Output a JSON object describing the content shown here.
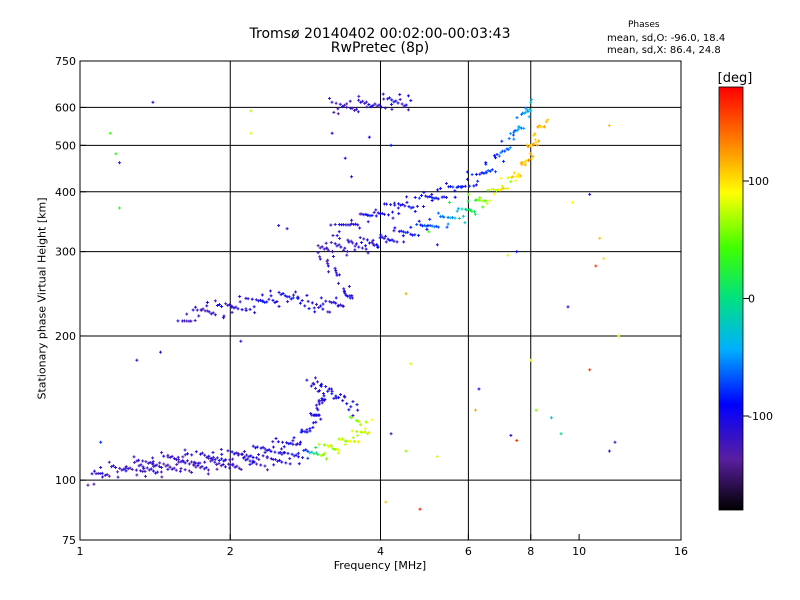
{
  "chart_data": {
    "type": "scatter",
    "title": "Tromsø 20140402 00:02:00-00:03:43",
    "subtitle": "RwPretec (8p)",
    "phases": {
      "heading": "Phases",
      "o_line": "mean, sd,O: -96.0, 18.4",
      "x_line": "mean, sd,X:  86.4, 24.8"
    },
    "xlabel": "Frequency [MHz]",
    "ylabel": "Stationary phase Virtual Height [km]",
    "x_scale": "log",
    "y_scale": "log",
    "xlim": [
      1,
      16
    ],
    "ylim": [
      75,
      750
    ],
    "x_ticks": [
      1,
      2,
      4,
      6,
      8,
      10,
      16
    ],
    "x_grid": [
      2,
      4,
      6,
      8
    ],
    "y_ticks": [
      75,
      100,
      200,
      300,
      400,
      500,
      600,
      750
    ],
    "y_grid": [
      100,
      200,
      300,
      400,
      500,
      600
    ],
    "grid": true,
    "colorbar": {
      "label": "[deg]",
      "range": [
        -180,
        180
      ],
      "ticks": [
        100,
        0,
        -100
      ]
    },
    "series": [
      {
        "marker": "+",
        "trace_points": [
          [
            1.05,
            100,
            -110
          ],
          [
            1.12,
            104,
            -115
          ],
          [
            1.25,
            106,
            -120
          ],
          [
            1.35,
            108,
            -110
          ],
          [
            1.5,
            110,
            -115
          ],
          [
            1.7,
            111,
            -110
          ],
          [
            1.9,
            112,
            -105
          ],
          [
            2.1,
            113,
            -110
          ],
          [
            2.3,
            115,
            -100
          ],
          [
            2.5,
            117,
            -105
          ],
          [
            2.7,
            120,
            -100
          ],
          [
            2.85,
            126,
            -95
          ],
          [
            2.95,
            135,
            -100
          ],
          [
            3.0,
            140,
            -105
          ],
          [
            3.1,
            150,
            -100
          ],
          [
            2.9,
            160,
            -110
          ],
          [
            3.3,
            150,
            -95
          ],
          [
            3.6,
            140,
            -100
          ],
          [
            1.3,
            105,
            -115
          ],
          [
            1.6,
            107,
            -120
          ],
          [
            2.0,
            108,
            -115
          ],
          [
            2.4,
            110,
            -110
          ],
          [
            2.8,
            113,
            -100
          ],
          [
            3.05,
            115,
            70
          ],
          [
            3.2,
            117,
            75
          ],
          [
            3.4,
            120,
            80
          ],
          [
            3.6,
            124,
            85
          ],
          [
            3.8,
            128,
            90
          ],
          [
            3.5,
            135,
            60
          ],
          [
            1.6,
            215,
            -110
          ],
          [
            1.75,
            225,
            -115
          ],
          [
            1.95,
            228,
            -110
          ],
          [
            2.15,
            232,
            -105
          ],
          [
            2.4,
            240,
            -100
          ],
          [
            2.7,
            242,
            -95
          ],
          [
            2.9,
            232,
            -100
          ],
          [
            3.1,
            230,
            -105
          ],
          [
            3.3,
            235,
            -110
          ],
          [
            3.5,
            240,
            -100
          ],
          [
            3.0,
            305,
            -120
          ],
          [
            3.2,
            306,
            -115
          ],
          [
            3.4,
            307,
            -115
          ],
          [
            3.6,
            310,
            -110
          ],
          [
            3.8,
            312,
            -105
          ],
          [
            4.0,
            316,
            -100
          ],
          [
            4.3,
            322,
            -95
          ],
          [
            4.6,
            330,
            -85
          ],
          [
            5.0,
            340,
            -70
          ],
          [
            5.4,
            350,
            -50
          ],
          [
            5.8,
            360,
            -20
          ],
          [
            6.1,
            370,
            20
          ],
          [
            6.4,
            385,
            60
          ],
          [
            6.8,
            400,
            90
          ],
          [
            7.2,
            420,
            100
          ],
          [
            7.6,
            440,
            110
          ],
          [
            7.9,
            470,
            120
          ],
          [
            8.1,
            500,
            120
          ],
          [
            8.3,
            540,
            115
          ],
          [
            8.6,
            560,
            110
          ],
          [
            3.2,
            330,
            -110
          ],
          [
            3.5,
            345,
            -105
          ],
          [
            3.9,
            360,
            -100
          ],
          [
            4.3,
            372,
            -100
          ],
          [
            4.8,
            382,
            -95
          ],
          [
            5.3,
            395,
            -90
          ],
          [
            5.8,
            410,
            -85
          ],
          [
            6.3,
            430,
            -80
          ],
          [
            6.8,
            460,
            -70
          ],
          [
            7.2,
            500,
            -60
          ],
          [
            7.5,
            540,
            -50
          ],
          [
            7.8,
            580,
            -40
          ],
          [
            8.0,
            615,
            -30
          ],
          [
            3.2,
            600,
            -120
          ],
          [
            3.5,
            605,
            -115
          ],
          [
            3.9,
            610,
            -110
          ],
          [
            4.6,
            620,
            -100
          ]
        ]
      },
      {
        "marker": "+",
        "scatter_points": [
          [
            1.4,
            615,
            -110
          ],
          [
            1.2,
            460,
            -115
          ],
          [
            1.15,
            530,
            40
          ],
          [
            1.18,
            480,
            30
          ],
          [
            1.2,
            370,
            30
          ],
          [
            2.2,
            590,
            70
          ],
          [
            2.2,
            530,
            80
          ],
          [
            2.5,
            340,
            -115
          ],
          [
            2.6,
            335,
            -115
          ],
          [
            3.5,
            430,
            -110
          ],
          [
            3.4,
            470,
            -105
          ],
          [
            3.2,
            530,
            -100
          ],
          [
            3.8,
            520,
            -95
          ],
          [
            4.2,
            500,
            -90
          ],
          [
            4.5,
            245,
            120
          ],
          [
            4.6,
            175,
            80
          ],
          [
            4.5,
            115,
            60
          ],
          [
            4.2,
            125,
            -120
          ],
          [
            5.0,
            330,
            40
          ],
          [
            5.2,
            310,
            -110
          ],
          [
            5.5,
            380,
            20
          ],
          [
            6.0,
            395,
            60
          ],
          [
            6.5,
            460,
            -90
          ],
          [
            7.0,
            510,
            -80
          ],
          [
            7.3,
            420,
            60
          ],
          [
            6.3,
            155,
            -100
          ],
          [
            7.2,
            295,
            80
          ],
          [
            7.5,
            300,
            -90
          ],
          [
            6.2,
            140,
            120
          ],
          [
            8.0,
            178,
            90
          ],
          [
            8.2,
            140,
            60
          ],
          [
            8.8,
            135,
            -30
          ],
          [
            9.2,
            125,
            -5
          ],
          [
            9.5,
            230,
            -105
          ],
          [
            9.7,
            380,
            90
          ],
          [
            10.5,
            395,
            -110
          ],
          [
            11.0,
            320,
            110
          ],
          [
            11.2,
            290,
            100
          ],
          [
            10.8,
            280,
            160
          ],
          [
            11.5,
            550,
            110
          ],
          [
            12.0,
            200,
            70
          ],
          [
            10.5,
            170,
            160
          ],
          [
            11.8,
            120,
            -120
          ],
          [
            11.5,
            115,
            -120
          ],
          [
            4.8,
            87,
            170
          ],
          [
            4.1,
            90,
            110
          ],
          [
            5.2,
            112,
            80
          ],
          [
            7.3,
            124,
            -110
          ],
          [
            7.5,
            121,
            160
          ],
          [
            1.8,
            235,
            -90
          ],
          [
            2.1,
            195,
            -110
          ],
          [
            1.45,
            185,
            -115
          ],
          [
            1.3,
            178,
            -110
          ],
          [
            1.1,
            120,
            -80
          ]
        ]
      }
    ]
  }
}
